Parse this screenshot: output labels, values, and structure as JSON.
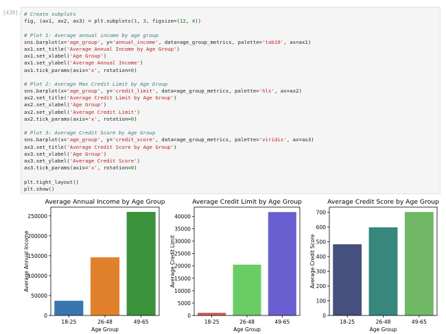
{
  "cell": {
    "prompt": "[439]:",
    "code_lines": [
      [
        {
          "t": "# Create subplots",
          "c": "c"
        }
      ],
      [
        {
          "t": "fig, (ax1, ax2, ax3) = plt.subplots(",
          "c": "k"
        },
        {
          "t": "1",
          "c": "num"
        },
        {
          "t": ", ",
          "c": "k"
        },
        {
          "t": "3",
          "c": "num"
        },
        {
          "t": ", figsize=(",
          "c": "k"
        },
        {
          "t": "12",
          "c": "num"
        },
        {
          "t": ", ",
          "c": "k"
        },
        {
          "t": "4",
          "c": "num"
        },
        {
          "t": "))",
          "c": "k"
        }
      ],
      [
        {
          "t": "",
          "c": "k"
        }
      ],
      [
        {
          "t": "# Plot 1: Average annual income by age group",
          "c": "c"
        }
      ],
      [
        {
          "t": "sns.barplot(x=",
          "c": "k"
        },
        {
          "t": "'age_group'",
          "c": "s"
        },
        {
          "t": ", y=",
          "c": "k"
        },
        {
          "t": "'annual_income'",
          "c": "s"
        },
        {
          "t": ", data=age_group_metrics, palette=",
          "c": "k"
        },
        {
          "t": "'tab10'",
          "c": "s"
        },
        {
          "t": ", ax=ax1)",
          "c": "k"
        }
      ],
      [
        {
          "t": "ax1.set_title(",
          "c": "k"
        },
        {
          "t": "'Average Annual Income by Age Group'",
          "c": "s"
        },
        {
          "t": ")",
          "c": "k"
        }
      ],
      [
        {
          "t": "ax1.set_xlabel(",
          "c": "k"
        },
        {
          "t": "'Age Group'",
          "c": "s"
        },
        {
          "t": ")",
          "c": "k"
        }
      ],
      [
        {
          "t": "ax1.set_ylabel(",
          "c": "k"
        },
        {
          "t": "'Average Annual Income'",
          "c": "s"
        },
        {
          "t": ")",
          "c": "k"
        }
      ],
      [
        {
          "t": "ax1.tick_params(axis=",
          "c": "k"
        },
        {
          "t": "'x'",
          "c": "s"
        },
        {
          "t": ", rotation=",
          "c": "k"
        },
        {
          "t": "0",
          "c": "num"
        },
        {
          "t": ")",
          "c": "k"
        }
      ],
      [
        {
          "t": "",
          "c": "k"
        }
      ],
      [
        {
          "t": "# Plot 2: Average Max Credit Limit by Age Group",
          "c": "c"
        }
      ],
      [
        {
          "t": "sns.barplot(x=",
          "c": "k"
        },
        {
          "t": "'age_group'",
          "c": "s"
        },
        {
          "t": ", y=",
          "c": "k"
        },
        {
          "t": "'credit_limit'",
          "c": "s"
        },
        {
          "t": ", data=age_group_metrics, palette=",
          "c": "k"
        },
        {
          "t": "'hls'",
          "c": "s"
        },
        {
          "t": ", ax=ax2)",
          "c": "k"
        }
      ],
      [
        {
          "t": "ax2.set_title(",
          "c": "k"
        },
        {
          "t": "'Average Credit Limit by Age Group'",
          "c": "s"
        },
        {
          "t": ")",
          "c": "k"
        }
      ],
      [
        {
          "t": "ax2.set_xlabel(",
          "c": "k"
        },
        {
          "t": "'Age Group'",
          "c": "s"
        },
        {
          "t": ")",
          "c": "k"
        }
      ],
      [
        {
          "t": "ax2.set_ylabel(",
          "c": "k"
        },
        {
          "t": "'Average Credit Limit'",
          "c": "s"
        },
        {
          "t": ")",
          "c": "k"
        }
      ],
      [
        {
          "t": "ax2.tick_params(axis=",
          "c": "k"
        },
        {
          "t": "'x'",
          "c": "s"
        },
        {
          "t": ", rotation=",
          "c": "k"
        },
        {
          "t": "0",
          "c": "num"
        },
        {
          "t": ")",
          "c": "k"
        }
      ],
      [
        {
          "t": "",
          "c": "k"
        }
      ],
      [
        {
          "t": "# Plot 3: Average Credit Score by Age Group",
          "c": "c"
        }
      ],
      [
        {
          "t": "sns.barplot(x=",
          "c": "k"
        },
        {
          "t": "'age_group'",
          "c": "s"
        },
        {
          "t": ", y=",
          "c": "k"
        },
        {
          "t": "'credit_score'",
          "c": "s"
        },
        {
          "t": ", data=age_group_metrics, palette=",
          "c": "k"
        },
        {
          "t": "'viridis'",
          "c": "s"
        },
        {
          "t": ", ax=ax3)",
          "c": "k"
        }
      ],
      [
        {
          "t": "ax3.set_title(",
          "c": "k"
        },
        {
          "t": "'Average Credit Score by Age Group'",
          "c": "s"
        },
        {
          "t": ")",
          "c": "k"
        }
      ],
      [
        {
          "t": "ax3.set_xlabel(",
          "c": "k"
        },
        {
          "t": "'Age Group'",
          "c": "s"
        },
        {
          "t": ")",
          "c": "k"
        }
      ],
      [
        {
          "t": "ax3.set_ylabel(",
          "c": "k"
        },
        {
          "t": "'Average Credit Score'",
          "c": "s"
        },
        {
          "t": ")",
          "c": "k"
        }
      ],
      [
        {
          "t": "ax3.tick_params(axis=",
          "c": "k"
        },
        {
          "t": "'x'",
          "c": "s"
        },
        {
          "t": ", rotation=",
          "c": "k"
        },
        {
          "t": "0",
          "c": "num"
        },
        {
          "t": ")",
          "c": "k"
        }
      ],
      [
        {
          "t": "",
          "c": "k"
        }
      ],
      [
        {
          "t": "plt.tight_layout()",
          "c": "k"
        }
      ],
      [
        {
          "t": "plt.show()",
          "c": "k"
        }
      ]
    ]
  },
  "chart_data": [
    {
      "type": "bar",
      "title": "Average Annual Income by Age Group",
      "xlabel": "Age Group",
      "ylabel": "Average Annual Income",
      "categories": [
        "18-25",
        "26-48",
        "49-65"
      ],
      "values": [
        37000,
        146000,
        260000
      ],
      "colors": [
        "#3a75b0",
        "#e1812c",
        "#3a923a"
      ],
      "ylim": [
        0,
        272000
      ],
      "yticks": [
        0,
        50000,
        100000,
        150000,
        200000,
        250000
      ],
      "ytick_labels": [
        "0",
        "50000",
        "100000",
        "150000",
        "200000",
        "250000"
      ]
    },
    {
      "type": "bar",
      "title": "Average Credit Limit by Age Group",
      "xlabel": "Age Group",
      "ylabel": "Average Credit Limit",
      "categories": [
        "18-25",
        "26-48",
        "49-65"
      ],
      "values": [
        1100,
        20500,
        41700
      ],
      "colors": [
        "#d0605e",
        "#6acc64",
        "#6a5fd0"
      ],
      "ylim": [
        0,
        43700
      ],
      "yticks": [
        0,
        5000,
        10000,
        15000,
        20000,
        25000,
        30000,
        35000,
        40000
      ],
      "ytick_labels": [
        "0",
        "5000",
        "10000",
        "15000",
        "20000",
        "25000",
        "30000",
        "35000",
        "40000"
      ]
    },
    {
      "type": "bar",
      "title": "Average Credit Score by Age Group",
      "xlabel": "Age Group",
      "ylabel": "Average Credit Score",
      "categories": [
        "18-25",
        "26-48",
        "49-65"
      ],
      "values": [
        483,
        598,
        702
      ],
      "colors": [
        "#46507e",
        "#37877c",
        "#70b866"
      ],
      "ylim": [
        0,
        735
      ],
      "yticks": [
        0,
        100,
        200,
        300,
        400,
        500,
        600,
        700
      ],
      "ytick_labels": [
        "0",
        "100",
        "200",
        "300",
        "400",
        "500",
        "600",
        "700"
      ]
    }
  ]
}
